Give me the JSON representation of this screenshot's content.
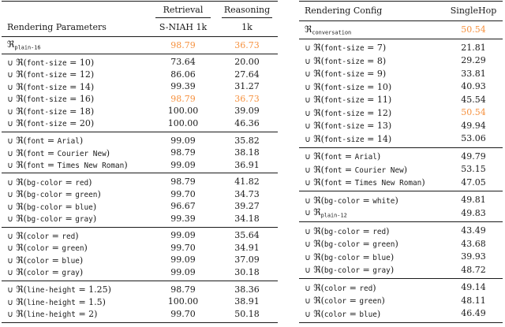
{
  "page": {
    "background": "#ffffff",
    "text_color": "#1b1b1b",
    "rule_color": "#1a1a1a",
    "highlight_color": "#f6913e"
  },
  "left_table": {
    "header": {
      "col_label": "Rendering Parameters",
      "groups": [
        {
          "title": "Retrieval",
          "sub": "S-NIAH 1k"
        },
        {
          "title": "Reasoning",
          "sub": "1k"
        }
      ]
    },
    "groups": [
      {
        "name": "baseline",
        "rows": [
          {
            "label": "ℜ_{plain-16}",
            "values": [
              {
                "v": "98.79",
                "hl": true
              },
              {
                "v": "36.73",
                "hl": true
              }
            ]
          }
        ]
      },
      {
        "name": "font-size",
        "rows": [
          {
            "label": "∪ ℜ(`font-size` = 10)",
            "values": [
              {
                "v": "73.64"
              },
              {
                "v": "20.00"
              }
            ]
          },
          {
            "label": "∪ ℜ(`font-size` = 12)",
            "values": [
              {
                "v": "86.06"
              },
              {
                "v": "27.64"
              }
            ]
          },
          {
            "label": "∪ ℜ(`font-size` = 14)",
            "values": [
              {
                "v": "99.39"
              },
              {
                "v": "31.27"
              }
            ]
          },
          {
            "label": "∪ ℜ(`font-size` = 16)",
            "values": [
              {
                "v": "98.79",
                "hl": true
              },
              {
                "v": "36.73",
                "hl": true
              }
            ]
          },
          {
            "label": "∪ ℜ(`font-size` = 18)",
            "values": [
              {
                "v": "100.00"
              },
              {
                "v": "39.09"
              }
            ]
          },
          {
            "label": "∪ ℜ(`font-size` = 20)",
            "values": [
              {
                "v": "100.00"
              },
              {
                "v": "46.36"
              }
            ]
          }
        ]
      },
      {
        "name": "font",
        "rows": [
          {
            "label": "∪ ℜ(`font` = `Arial`)",
            "values": [
              {
                "v": "99.09"
              },
              {
                "v": "35.82"
              }
            ]
          },
          {
            "label": "∪ ℜ(`font` = `Courier New`)",
            "values": [
              {
                "v": "98.79"
              },
              {
                "v": "38.18"
              }
            ]
          },
          {
            "label": "∪ ℜ(`font` = `Times New Roman`)",
            "values": [
              {
                "v": "99.09"
              },
              {
                "v": "36.91"
              }
            ]
          }
        ]
      },
      {
        "name": "bg-color",
        "rows": [
          {
            "label": "∪ ℜ(`bg-color` = `red`)",
            "values": [
              {
                "v": "98.79"
              },
              {
                "v": "41.82"
              }
            ]
          },
          {
            "label": "∪ ℜ(`bg-color` = `green`)",
            "values": [
              {
                "v": "99.70"
              },
              {
                "v": "34.73"
              }
            ]
          },
          {
            "label": "∪ ℜ(`bg-color` = `blue`)",
            "values": [
              {
                "v": "96.67"
              },
              {
                "v": "39.27"
              }
            ]
          },
          {
            "label": "∪ ℜ(`bg-color` = `gray`)",
            "values": [
              {
                "v": "99.39"
              },
              {
                "v": "34.18"
              }
            ]
          }
        ]
      },
      {
        "name": "color",
        "rows": [
          {
            "label": "∪ ℜ(`color` = `red`)",
            "values": [
              {
                "v": "99.09"
              },
              {
                "v": "35.64"
              }
            ]
          },
          {
            "label": "∪ ℜ(`color` = `green`)",
            "values": [
              {
                "v": "99.70"
              },
              {
                "v": "34.91"
              }
            ]
          },
          {
            "label": "∪ ℜ(`color` = `blue`)",
            "values": [
              {
                "v": "99.09"
              },
              {
                "v": "37.09"
              }
            ]
          },
          {
            "label": "∪ ℜ(`color` = `gray`)",
            "values": [
              {
                "v": "99.09"
              },
              {
                "v": "30.18"
              }
            ]
          }
        ]
      },
      {
        "name": "line-height",
        "rows": [
          {
            "label": "∪ ℜ(`line-height` = 1.25)",
            "values": [
              {
                "v": "98.79"
              },
              {
                "v": "38.36"
              }
            ]
          },
          {
            "label": "∪ ℜ(`line-height` = 1.5)",
            "values": [
              {
                "v": "100.00"
              },
              {
                "v": "38.91"
              }
            ]
          },
          {
            "label": "∪ ℜ(`line-height` = 2)",
            "values": [
              {
                "v": "99.70"
              },
              {
                "v": "50.18"
              }
            ]
          }
        ]
      }
    ]
  },
  "right_table": {
    "header": {
      "col_label": "Rendering Config",
      "value_label": "SingleHop"
    },
    "groups": [
      {
        "name": "baseline",
        "rows": [
          {
            "label": "ℜ_{conversation}",
            "values": [
              {
                "v": "50.54",
                "hl": true
              }
            ]
          }
        ]
      },
      {
        "name": "font-size",
        "rows": [
          {
            "label": "∪ ℜ(`font-size` = 7)",
            "values": [
              {
                "v": "21.81"
              }
            ]
          },
          {
            "label": "∪ ℜ(`font-size` = 8)",
            "values": [
              {
                "v": "29.29"
              }
            ]
          },
          {
            "label": "∪ ℜ(`font-size` = 9)",
            "values": [
              {
                "v": "33.81"
              }
            ]
          },
          {
            "label": "∪ ℜ(`font-size` = 10)",
            "values": [
              {
                "v": "40.93"
              }
            ]
          },
          {
            "label": "∪ ℜ(`font-size` = 11)",
            "values": [
              {
                "v": "45.54"
              }
            ]
          },
          {
            "label": "∪ ℜ(`font-size` = 12)",
            "values": [
              {
                "v": "50.54",
                "hl": true
              }
            ]
          },
          {
            "label": "∪ ℜ(`font-size` = 13)",
            "values": [
              {
                "v": "49.94"
              }
            ]
          },
          {
            "label": "∪ ℜ(`font-size` = 14)",
            "values": [
              {
                "v": "53.06"
              }
            ]
          }
        ]
      },
      {
        "name": "font",
        "rows": [
          {
            "label": "∪ ℜ(`font` = `Arial`)",
            "values": [
              {
                "v": "49.79"
              }
            ]
          },
          {
            "label": "∪ ℜ(`font` = `Courier New`)",
            "values": [
              {
                "v": "53.15"
              }
            ]
          },
          {
            "label": "∪ ℜ(`font` = `Times New Roman`)",
            "values": [
              {
                "v": "47.05"
              }
            ]
          }
        ]
      },
      {
        "name": "bg-white-plain",
        "rows": [
          {
            "label": "∪ ℜ(`bg-color` = `white`)",
            "values": [
              {
                "v": "49.81"
              }
            ]
          },
          {
            "label": "∪ ℜ_{plain-12}",
            "values": [
              {
                "v": "49.83"
              }
            ]
          }
        ]
      },
      {
        "name": "bg-color",
        "rows": [
          {
            "label": "∪ ℜ(`bg-color` = `red`)",
            "values": [
              {
                "v": "43.49"
              }
            ]
          },
          {
            "label": "∪ ℜ(`bg-color` = `green`)",
            "values": [
              {
                "v": "43.68"
              }
            ]
          },
          {
            "label": "∪ ℜ(`bg-color` = `blue`)",
            "values": [
              {
                "v": "39.93"
              }
            ]
          },
          {
            "label": "∪ ℜ(`bg-color` = `gray`)",
            "values": [
              {
                "v": "48.72"
              }
            ]
          }
        ]
      },
      {
        "name": "color",
        "rows": [
          {
            "label": "∪ ℜ(`color` = `red`)",
            "values": [
              {
                "v": "49.14"
              }
            ]
          },
          {
            "label": "∪ ℜ(`color` = `green`)",
            "values": [
              {
                "v": "48.11"
              }
            ]
          },
          {
            "label": "∪ ℜ(`color` = `blue`)",
            "values": [
              {
                "v": "46.49"
              }
            ]
          }
        ]
      }
    ]
  }
}
